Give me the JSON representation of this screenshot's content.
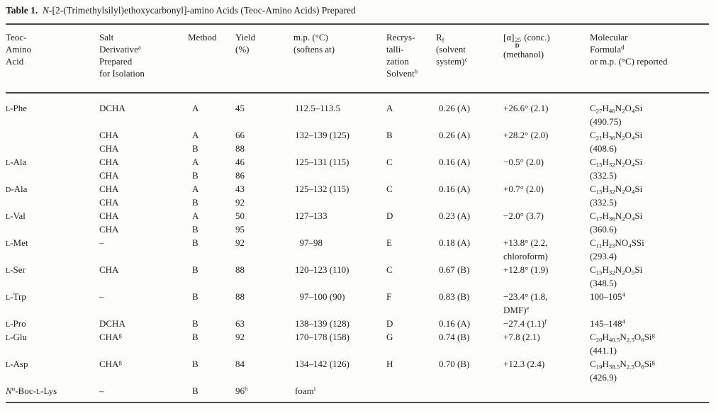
{
  "page": {
    "background": "#fdfdfb",
    "text_color": "#1f1f1f",
    "rule_color": "#4a4a4a"
  },
  "title": {
    "label": "Table 1.",
    "text": "N-[2-(Trimethylsilyl)ethoxycarbonyl]-amino Acids (Teoc-Amino Acids) Prepared",
    "html": "<b>Table 1.</b>&nbsp; <i>N</i>-[2-(Trimethylsilyl)ethoxycarbonyl]-amino Acids (Teoc-Amino Acids) Prepared"
  },
  "table": {
    "columns": [
      {
        "id": "teoc-amino-acid",
        "label": "Teoc-Amino Acid",
        "html": "Teoc-<br>Amino<br>Acid"
      },
      {
        "id": "salt-derivative",
        "label": "Salt Derivative(a) Prepared for Isolation",
        "html": "Salt<br>Derivative<sup>a</sup><br>Prepared<br>for Isolation"
      },
      {
        "id": "method",
        "label": "Method",
        "html": "Method"
      },
      {
        "id": "yield",
        "label": "Yield (%)",
        "html": "Yield<br>(%)"
      },
      {
        "id": "mp",
        "label": "m.p. (°C) (softens at)",
        "html": "m.p. (°C)<br>(softens at)"
      },
      {
        "id": "recrystallization-solvent",
        "label": "Recrystallization Solvent(b)",
        "html": "Recrys-<br>talli-<br>zation<br>Solvent<sup>b</sup>"
      },
      {
        "id": "rf",
        "label": "Rf (solvent system)(c)",
        "html": "R<sub>f</sub><br>(solvent<br>system)<sup>c</sup>"
      },
      {
        "id": "optical-rotation",
        "label": "[alpha]D25 (conc.) (methanol)",
        "html": "[α]<span class='supsub'><span>25</span><span class='d'>D</span></span> (conc.)<br>(methanol)"
      },
      {
        "id": "molecular-formula",
        "label": "Molecular Formula(d) or m.p. (°C) reported",
        "html": "Molecular<br>Formula<sup>d</sup><br>or m.p. (°C) reported"
      }
    ],
    "rows": [
      [
        "<span class='sc'>L</span>-Phe",
        "DCHA",
        "A",
        "45",
        "112.5–113.5",
        "A",
        "0.26 (A)",
        "+26.6° (2.1)",
        "C<sub>27</sub>H<sub>46</sub>N<sub>2</sub>O<sub>4</sub>Si"
      ],
      [
        "",
        "",
        "",
        "",
        "",
        "",
        "",
        "",
        "(490.75)"
      ],
      [
        "",
        "CHA",
        "A",
        "66",
        "132–139 (125)",
        "B",
        "0.26 (A)",
        "+28.2° (2.0)",
        "C<sub>21</sub>H<sub>36</sub>N<sub>2</sub>O<sub>4</sub>Si"
      ],
      [
        "",
        "CHA",
        "B",
        "88",
        "",
        "",
        "",
        "",
        "(408.6)"
      ],
      [
        "<span class='sc'>L</span>-Ala",
        "CHA",
        "A",
        "46",
        "125–131 (115)",
        "C",
        "0.16 (A)",
        "−0.5° (2.0)",
        "C<sub>15</sub>H<sub>32</sub>N<sub>2</sub>O<sub>4</sub>Si"
      ],
      [
        "",
        "CHA",
        "B",
        "86",
        "",
        "",
        "",
        "",
        "(332.5)"
      ],
      [
        "<span class='sc'>D</span>-Ala",
        "CHA",
        "A",
        "43",
        "125–132 (115)",
        "C",
        "0.16 (A)",
        "+0.7° (2.0)",
        "C<sub>15</sub>H<sub>32</sub>N<sub>2</sub>O<sub>4</sub>Si"
      ],
      [
        "",
        "CHA",
        "B",
        "92",
        "",
        "",
        "",
        "",
        "(332.5)"
      ],
      [
        "<span class='sc'>L</span>-Val",
        "CHA",
        "A",
        "50",
        "127–133",
        "D",
        "0.23 (A)",
        "−2.0° (3.7)",
        "C<sub>17</sub>H<sub>36</sub>N<sub>2</sub>O<sub>4</sub>Si"
      ],
      [
        "",
        "CHA",
        "B",
        "95",
        "",
        "",
        "",
        "",
        "(360.6)"
      ],
      [
        "<span class='sc'>L</span>-Met",
        "–",
        "B",
        "92",
        "&nbsp;&nbsp;97–98",
        "E",
        "0.18 (A)",
        "+13.8° (2.2,",
        "C<sub>11</sub>H<sub>23</sub>NO<sub>4</sub>SSi"
      ],
      [
        "",
        "",
        "",
        "",
        "",
        "",
        "",
        "chloroform)",
        "(293.4)"
      ],
      [
        "<span class='sc'>L</span>-Ser",
        "CHA",
        "B",
        "88",
        "120–123 (110)",
        "C",
        "0.67 (B)",
        "+12.8° (1.9)",
        "C<sub>15</sub>H<sub>32</sub>N<sub>2</sub>O<sub>5</sub>Si"
      ],
      [
        "",
        "",
        "",
        "",
        "",
        "",
        "",
        "",
        "(348.5)"
      ],
      [
        "<span class='sc'>L</span>-Trp",
        "–",
        "B",
        "88",
        "&nbsp;&nbsp;97–100 (90)",
        "F",
        "0.83 (B)",
        "−23.4° (1.8,",
        "100–105<sup>4</sup>"
      ],
      [
        "",
        "",
        "",
        "",
        "",
        "",
        "",
        "DMF)<sup>e</sup>",
        ""
      ],
      [
        "<span class='sc'>L</span>-Pro",
        "DCHA",
        "B",
        "63",
        "138–139 (128)",
        "D",
        "0.16 (A)",
        "−27.4 (1.1)<sup>f</sup>",
        "145–148<sup>4</sup>"
      ],
      [
        "<span class='sc'>L</span>-Glu",
        "CHA<sup>g</sup>",
        "B",
        "92",
        "170–178 (158)",
        "G",
        "0.74 (B)",
        "+7.8 (2.1)",
        "C<sub>20</sub>H<sub>40.5</sub>N<sub>2.5</sub>O<sub>6</sub>Si<sup>g</sup>"
      ],
      [
        "",
        "",
        "",
        "",
        "",
        "",
        "",
        "",
        "(441.1)"
      ],
      [
        "<span class='sc'>L</span>-Asp",
        "CHA<sup>g</sup>",
        "B",
        "84",
        "134–142 (126)",
        "H",
        "0.70 (B)",
        "+12.3 (2.4)",
        "C<sub>19</sub>H<sub>38.5</sub>N<sub>2.5</sub>O<sub>6</sub>Si<sup>g</sup>"
      ],
      [
        "",
        "",
        "",
        "",
        "",
        "",
        "",
        "",
        "(426.9)"
      ],
      [
        "<i>N</i><sup>α</sup>-Boc-<span class='sc'>L</span>-Lys",
        "–",
        "B",
        "96<sup>h</sup>",
        "foam<sup>i</sup>",
        "",
        "",
        "",
        ""
      ]
    ]
  }
}
